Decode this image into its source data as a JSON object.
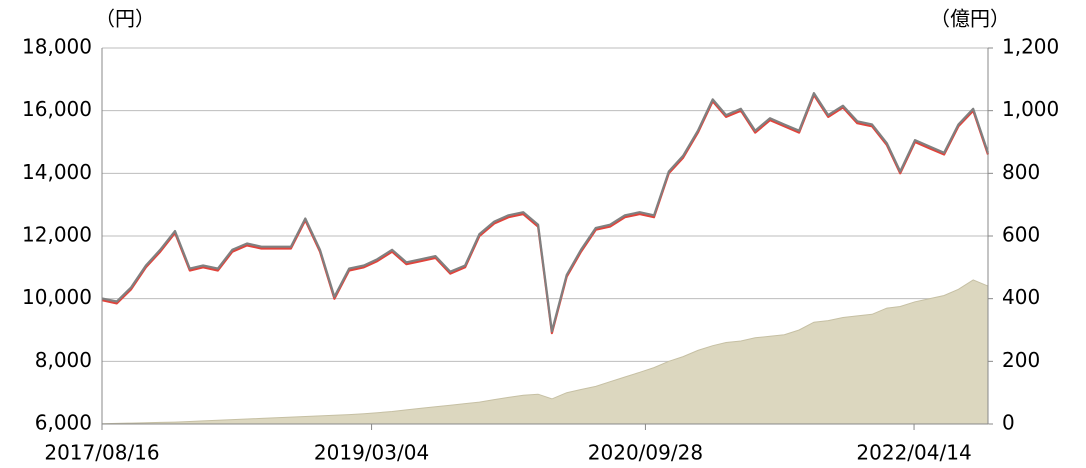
{
  "chart_data": {
    "type": "line",
    "y_label": "（円）",
    "y2_label": "（億円）",
    "x": [
      "2017/08/16",
      "2017/09/16",
      "2017/10/16",
      "2017/11/16",
      "2017/12/16",
      "2018/01/16",
      "2018/02/16",
      "2018/03/16",
      "2018/04/16",
      "2018/05/16",
      "2018/06/16",
      "2018/07/16",
      "2018/08/16",
      "2018/09/16",
      "2018/10/16",
      "2018/11/16",
      "2018/12/16",
      "2019/01/16",
      "2019/02/16",
      "2019/03/16",
      "2019/04/16",
      "2019/05/16",
      "2019/06/16",
      "2019/07/16",
      "2019/08/16",
      "2019/09/16",
      "2019/10/16",
      "2019/11/16",
      "2019/12/16",
      "2020/01/16",
      "2020/02/16",
      "2020/03/16",
      "2020/04/16",
      "2020/05/16",
      "2020/06/16",
      "2020/07/16",
      "2020/08/16",
      "2020/09/16",
      "2020/10/16",
      "2020/11/16",
      "2020/12/16",
      "2021/01/16",
      "2021/02/16",
      "2021/03/16",
      "2021/04/16",
      "2021/05/16",
      "2021/06/16",
      "2021/07/16",
      "2021/08/16",
      "2021/09/16",
      "2021/10/16",
      "2021/11/16",
      "2021/12/16",
      "2022/01/16",
      "2022/02/16",
      "2022/03/16",
      "2022/04/16",
      "2022/05/16",
      "2022/06/16",
      "2022/07/16",
      "2022/08/16",
      "2022/09/16"
    ],
    "xlim": [
      "2017/08/16",
      "2022/09/16"
    ],
    "xticks": [
      "2017/08/16",
      "2019/03/04",
      "2020/09/28",
      "2022/04/14"
    ],
    "series": [
      {
        "type": "area",
        "axis": "y2",
        "color": "#dcd7bf",
        "values": [
          1,
          2,
          3,
          4,
          5,
          6,
          8,
          10,
          12,
          14,
          16,
          18,
          20,
          22,
          24,
          26,
          28,
          30,
          33,
          36,
          40,
          45,
          50,
          55,
          60,
          65,
          70,
          78,
          85,
          92,
          95,
          80,
          100,
          110,
          120,
          135,
          150,
          165,
          180,
          200,
          215,
          235,
          250,
          260,
          265,
          275,
          280,
          285,
          300,
          325,
          330,
          340,
          345,
          350,
          370,
          375,
          390,
          400,
          410,
          430,
          460,
          440
        ]
      },
      {
        "type": "line",
        "axis": "y",
        "color": "#e0443c",
        "values": [
          9950,
          9850,
          10300,
          11000,
          11500,
          12100,
          10900,
          11000,
          10900,
          11500,
          11700,
          11600,
          11600,
          11600,
          12500,
          11500,
          10000,
          10900,
          11000,
          11200,
          11500,
          11100,
          11200,
          11300,
          10800,
          11000,
          12000,
          12400,
          12600,
          12700,
          12300,
          8900,
          10700,
          11500,
          12200,
          12300,
          12600,
          12700,
          12600,
          14000,
          14500,
          15300,
          16300,
          15800,
          16000,
          15300,
          15700,
          15500,
          15300,
          16500,
          15800,
          16100,
          15600,
          15500,
          14900,
          14000,
          15000,
          14800,
          14600,
          15500,
          16000,
          14600
        ]
      },
      {
        "type": "line",
        "axis": "y",
        "color": "#808080",
        "values": [
          10010,
          9910,
          10360,
          11060,
          11560,
          12160,
          10960,
          11060,
          10960,
          11560,
          11760,
          11660,
          11660,
          11660,
          12560,
          11560,
          10060,
          10960,
          11060,
          11260,
          11560,
          11160,
          11260,
          11360,
          10860,
          11060,
          12060,
          12460,
          12660,
          12760,
          12360,
          8960,
          10760,
          11560,
          12260,
          12360,
          12660,
          12760,
          12660,
          14060,
          14560,
          15360,
          16360,
          15860,
          16060,
          15360,
          15760,
          15560,
          15360,
          16560,
          15860,
          16160,
          15660,
          15560,
          14960,
          14060,
          15060,
          14860,
          14660,
          15560,
          16060,
          14660
        ]
      }
    ],
    "ylim": [
      6000,
      18000
    ],
    "yticks": [
      {
        "value": 6000,
        "label": "6,000"
      },
      {
        "value": 8000,
        "label": "8,000"
      },
      {
        "value": 10000,
        "label": "10,000"
      },
      {
        "value": 12000,
        "label": "12,000"
      },
      {
        "value": 14000,
        "label": "14,000"
      },
      {
        "value": 16000,
        "label": "16,000"
      },
      {
        "value": 18000,
        "label": "18,000"
      }
    ],
    "y2lim": [
      0,
      1200
    ],
    "y2ticks": [
      0,
      200,
      400,
      600,
      800,
      {
        "value": 1000,
        "label": "1,000"
      },
      {
        "value": 1200,
        "label": "1,200"
      }
    ],
    "grid": true
  }
}
